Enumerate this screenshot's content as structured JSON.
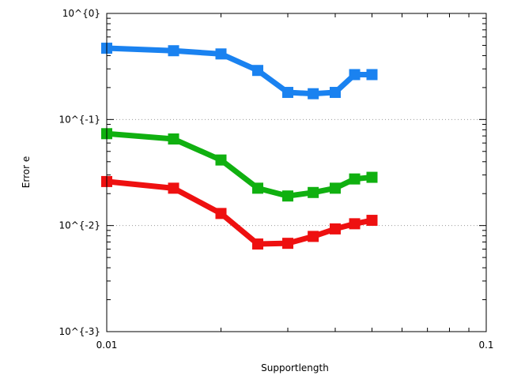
{
  "chart_data": {
    "type": "line",
    "title": "",
    "xlabel": "Supportlength",
    "ylabel": "Error e",
    "xscale": "log",
    "yscale": "log",
    "xlim": [
      0.01,
      0.1
    ],
    "ylim": [
      0.001,
      1
    ],
    "x_tick_labels": [
      "0.01",
      "0.1"
    ],
    "y_tick_labels": [
      "10^{-3}",
      "10^{-2}",
      "10^{-1}",
      "10^{0}"
    ],
    "grid": "horizontal dotted at major y ticks",
    "legend": "none",
    "x": [
      0.01,
      0.015,
      0.02,
      0.025,
      0.03,
      0.035,
      0.04,
      0.045,
      0.05
    ],
    "series": [
      {
        "color": "#1a82f0",
        "values": [
          0.47,
          0.445,
          0.415,
          0.29,
          0.18,
          0.175,
          0.18,
          0.265,
          0.265
        ]
      },
      {
        "color": "#10b010",
        "values": [
          0.0735,
          0.0655,
          0.0415,
          0.0225,
          0.019,
          0.0205,
          0.0225,
          0.0275,
          0.0285
        ]
      },
      {
        "color": "#ee1010",
        "values": [
          0.026,
          0.0225,
          0.013,
          0.0067,
          0.0068,
          0.0079,
          0.0093,
          0.0104,
          0.0112
        ]
      }
    ]
  }
}
